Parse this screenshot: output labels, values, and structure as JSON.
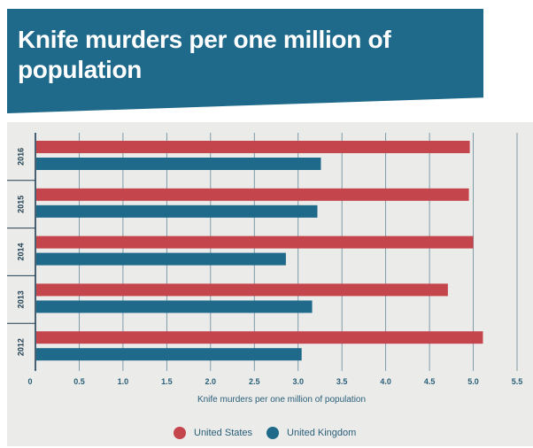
{
  "title": "Knife murders per one million of population",
  "colors": {
    "banner": "#1f6a8a",
    "us": "#c5454d",
    "uk": "#1f6a8a",
    "panel": "#ebebea",
    "grid": "#2a5f78"
  },
  "chart_data": {
    "type": "bar",
    "orientation": "horizontal",
    "title": "Knife murders per one million of population",
    "xlabel": "Knife murders per one million of population",
    "ylabel": "",
    "xlim": [
      0,
      5.5
    ],
    "xticks": [
      "0",
      "0.5",
      "1.0",
      "1.5",
      "2.0",
      "2.5",
      "3.0",
      "3.5",
      "4.0",
      "4.5",
      "5.0",
      "5.5"
    ],
    "xtick_values": [
      0,
      0.5,
      1.0,
      1.5,
      2.0,
      2.5,
      3.0,
      3.5,
      4.0,
      4.5,
      5.0,
      5.5
    ],
    "categories": [
      "2016",
      "2015",
      "2014",
      "2013",
      "2012"
    ],
    "series": [
      {
        "name": "United States",
        "color": "#c5454d",
        "values": [
          4.96,
          4.95,
          5.0,
          4.71,
          5.11
        ]
      },
      {
        "name": "United Kingdom",
        "color": "#1f6a8a",
        "values": [
          3.26,
          3.22,
          2.86,
          3.16,
          3.04
        ]
      }
    ],
    "legend": "bottom-center"
  }
}
